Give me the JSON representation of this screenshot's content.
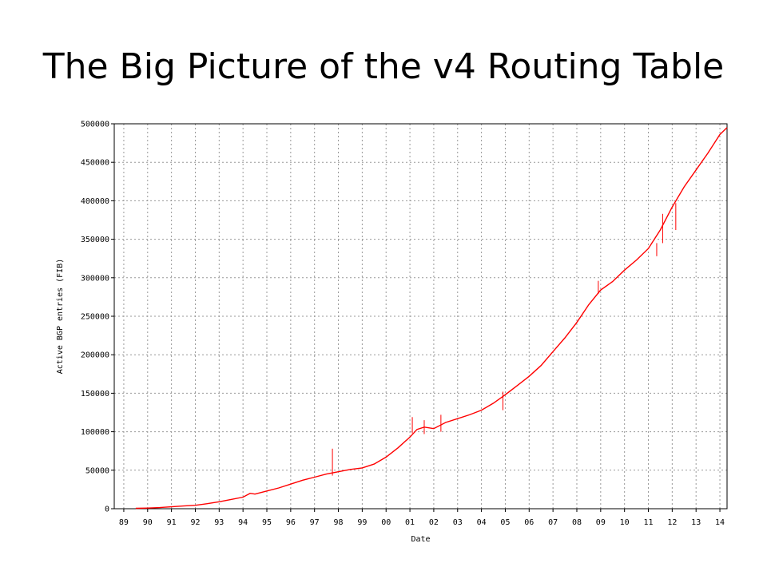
{
  "slide": {
    "title": "The Big Picture of the v4 Routing Table"
  },
  "chart_data": {
    "type": "line",
    "xlabel": "Date",
    "ylabel": "Active BGP entries (FIB)",
    "x_tick_labels": [
      "89",
      "90",
      "91",
      "92",
      "93",
      "94",
      "95",
      "96",
      "97",
      "98",
      "99",
      "00",
      "01",
      "02",
      "03",
      "04",
      "05",
      "06",
      "07",
      "08",
      "09",
      "10",
      "11",
      "12",
      "13",
      "14"
    ],
    "x_ticks": [
      1989,
      1990,
      1991,
      1992,
      1993,
      1994,
      1995,
      1996,
      1997,
      1998,
      1999,
      2000,
      2001,
      2002,
      2003,
      2004,
      2005,
      2006,
      2007,
      2008,
      2009,
      2010,
      2011,
      2012,
      2013,
      2014
    ],
    "xlim": [
      1988.6,
      2014.3
    ],
    "y_ticks": [
      0,
      50000,
      100000,
      150000,
      200000,
      250000,
      300000,
      350000,
      400000,
      450000,
      500000
    ],
    "y_tick_labels": [
      "0",
      "50000",
      "100000",
      "150000",
      "200000",
      "250000",
      "300000",
      "350000",
      "400000",
      "450000",
      "500000"
    ],
    "ylim": [
      0,
      500000
    ],
    "grid": true,
    "series_color": "#ff0000",
    "series": [
      {
        "x": [
          1989.5,
          1990,
          1990.5,
          1991,
          1991.5,
          1992,
          1992.5,
          1993,
          1993.5,
          1994,
          1994.3,
          1994.5,
          1995,
          1995.5,
          1996,
          1996.5,
          1997,
          1997.5,
          1998,
          1998.5,
          1999,
          1999.5,
          2000,
          2000.5,
          2001,
          2001.3,
          2001.6,
          2002,
          2002.5,
          2003,
          2003.5,
          2004,
          2004.5,
          2005,
          2005.5,
          2006,
          2006.5,
          2007,
          2007.5,
          2008,
          2008.5,
          2009,
          2009.5,
          2010,
          2010.5,
          2011,
          2011.5,
          2012,
          2012.5,
          2013,
          2013.5,
          2014,
          2014.3
        ],
        "y": [
          500,
          800,
          1500,
          2500,
          3500,
          4500,
          6500,
          9000,
          12000,
          15000,
          20000,
          19000,
          23000,
          27000,
          32000,
          37000,
          41000,
          45000,
          48000,
          51000,
          53000,
          58000,
          67000,
          79000,
          93000,
          103000,
          106000,
          104000,
          112000,
          117000,
          122000,
          128000,
          137000,
          148000,
          160000,
          172000,
          186000,
          204000,
          222000,
          242000,
          265000,
          284000,
          295000,
          310000,
          323000,
          338000,
          362000,
          392000,
          418000,
          440000,
          462000,
          486000,
          495000
        ]
      }
    ],
    "spikes": [
      {
        "x": 1997.75,
        "y1": 43000,
        "y2": 78000
      },
      {
        "x": 2001.1,
        "y1": 98000,
        "y2": 119000
      },
      {
        "x": 2001.6,
        "y1": 97000,
        "y2": 115000
      },
      {
        "x": 2002.3,
        "y1": 100000,
        "y2": 122000
      },
      {
        "x": 2004.9,
        "y1": 128000,
        "y2": 152000
      },
      {
        "x": 2011.35,
        "y1": 328000,
        "y2": 345000
      },
      {
        "x": 2011.6,
        "y1": 345000,
        "y2": 383000
      },
      {
        "x": 2012.15,
        "y1": 362000,
        "y2": 397000
      },
      {
        "x": 2008.9,
        "y1": 279000,
        "y2": 296000
      }
    ]
  }
}
